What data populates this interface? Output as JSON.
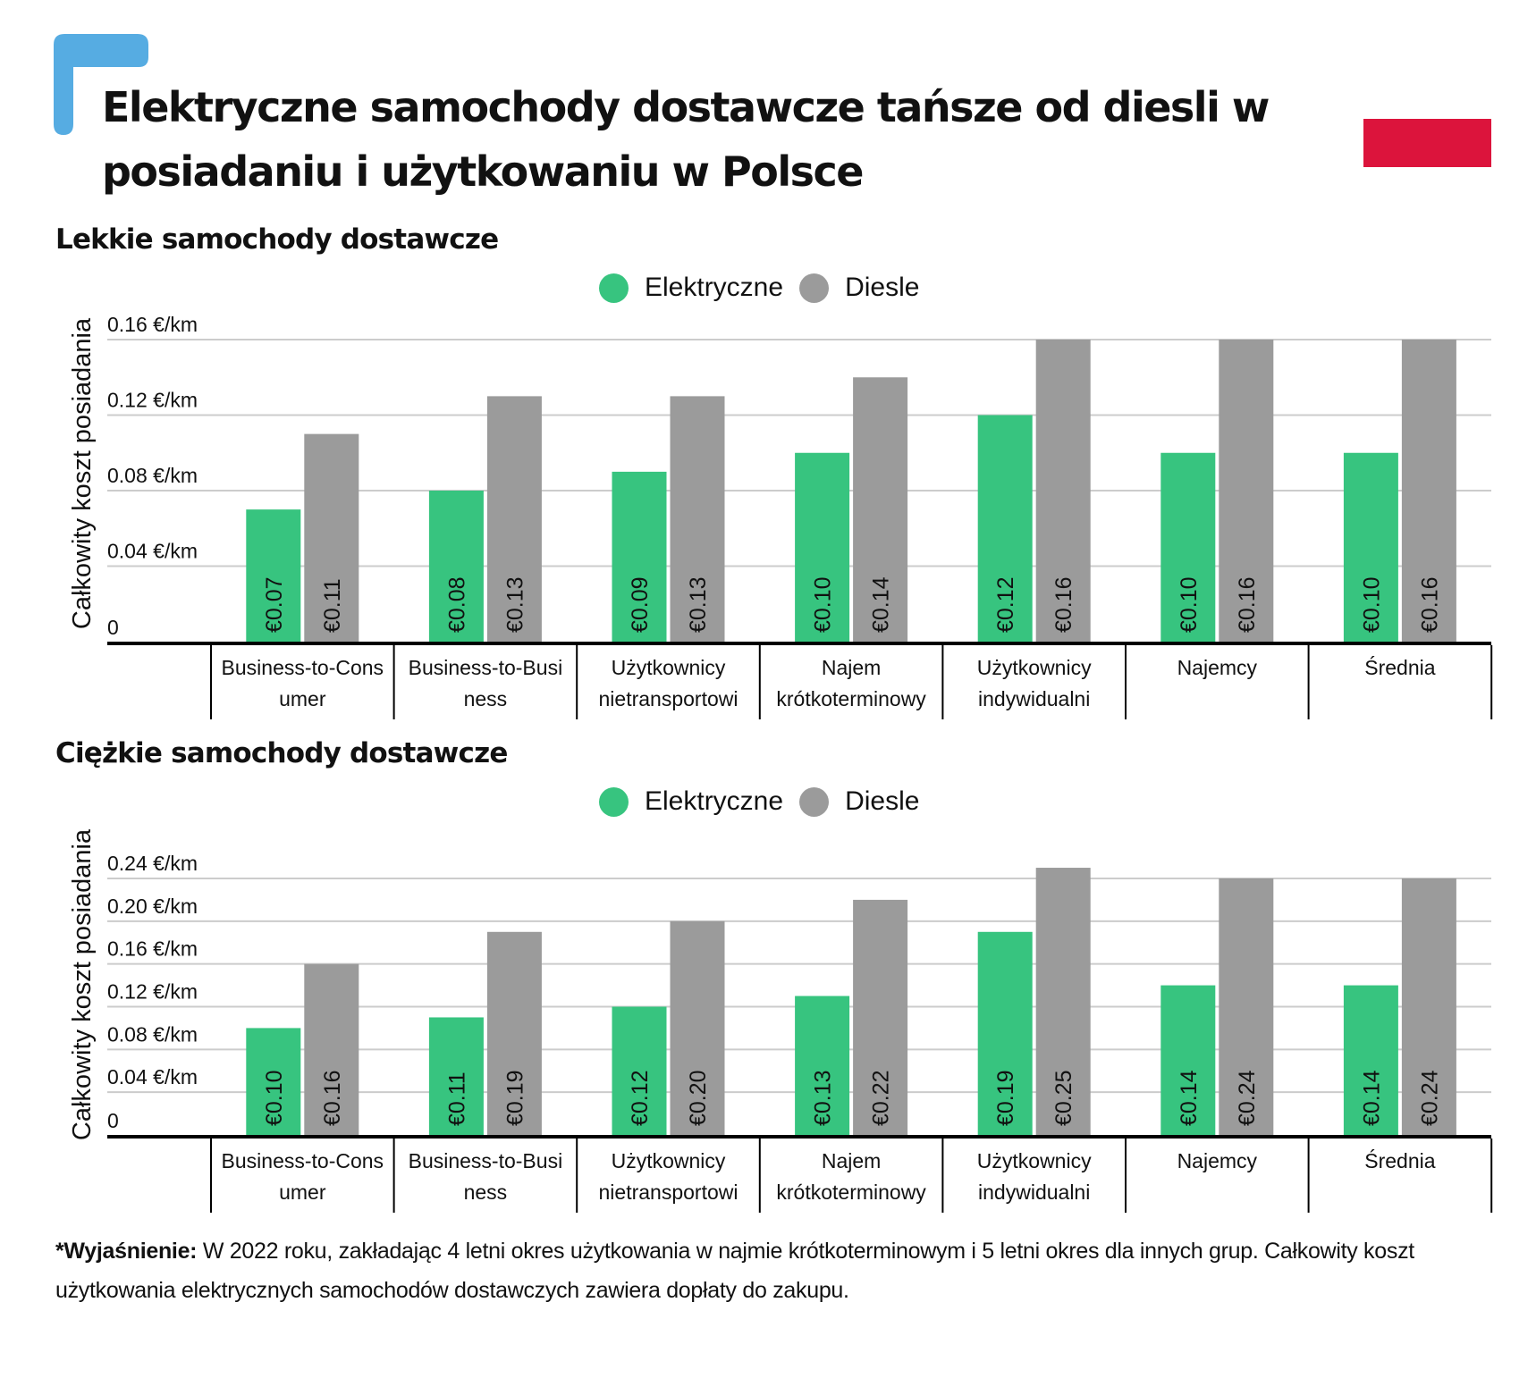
{
  "header": {
    "title": "Elektryczne samochody dostawcze tańsze od diesli w posiadaniu i użytkowaniu w Polsce",
    "logo_icon": "brand-corner-icon",
    "flag_icon": "poland-flag-icon",
    "colors": {
      "logo": "#56ACE2",
      "flag": "#DC143C"
    }
  },
  "colors": {
    "electric": "#37C47F",
    "diesel": "#9B9B9B",
    "grid": "#CCCCCC",
    "axis": "#000000"
  },
  "chart_data": [
    {
      "type": "bar",
      "title": "Lekkie samochody dostawcze",
      "ylabel": "Całkowity koszt posiadania",
      "xlabel": "",
      "ylim": [
        0,
        0.16
      ],
      "yticks": [
        0,
        0.04,
        0.08,
        0.12,
        0.16
      ],
      "ytick_labels": [
        "0",
        "0.04 €/km",
        "0.08 €/km",
        "0.12 €/km",
        "0.16 €/km"
      ],
      "grid": true,
      "legend_position": "top-center",
      "categories": [
        [
          "Business-to-Cons",
          "umer"
        ],
        [
          "Business-to-Busi",
          "ness"
        ],
        [
          "Użytkownicy",
          "nietransportowi"
        ],
        [
          "Najem",
          "krótkoterminowy"
        ],
        [
          "Użytkownicy",
          "indywidualni"
        ],
        [
          "Najemcy"
        ],
        [
          "Średnia"
        ]
      ],
      "series": [
        {
          "name": "Elektryczne",
          "color": "#37C47F",
          "values": [
            0.07,
            0.08,
            0.09,
            0.1,
            0.12,
            0.1,
            0.1
          ],
          "labels": [
            "€0.07",
            "€0.08",
            "€0.09",
            "€0.10",
            "€0.12",
            "€0.10",
            "€0.10"
          ]
        },
        {
          "name": "Diesle",
          "color": "#9B9B9B",
          "values": [
            0.11,
            0.13,
            0.13,
            0.14,
            0.16,
            0.16,
            0.16
          ],
          "labels": [
            "€0.11",
            "€0.13",
            "€0.13",
            "€0.14",
            "€0.16",
            "€0.16",
            "€0.16"
          ]
        }
      ]
    },
    {
      "type": "bar",
      "title": "Ciężkie samochody dostawcze",
      "ylabel": "Całkowity koszt posiadania",
      "xlabel": "",
      "ylim": [
        0,
        0.24
      ],
      "yticks": [
        0,
        0.04,
        0.08,
        0.12,
        0.16,
        0.2,
        0.24
      ],
      "ytick_labels": [
        "0",
        "0.04 €/km",
        "0.08 €/km",
        "0.12 €/km",
        "0.16 €/km",
        "0.20 €/km",
        "0.24 €/km"
      ],
      "grid": true,
      "legend_position": "top-center",
      "categories": [
        [
          "Business-to-Cons",
          "umer"
        ],
        [
          "Business-to-Busi",
          "ness"
        ],
        [
          "Użytkownicy",
          "nietransportowi"
        ],
        [
          "Najem",
          "krótkoterminowy"
        ],
        [
          "Użytkownicy",
          "indywidualni"
        ],
        [
          "Najemcy"
        ],
        [
          "Średnia"
        ]
      ],
      "series": [
        {
          "name": "Elektryczne",
          "color": "#37C47F",
          "values": [
            0.1,
            0.11,
            0.12,
            0.13,
            0.19,
            0.14,
            0.14
          ],
          "labels": [
            "€0.10",
            "€0.11",
            "€0.12",
            "€0.13",
            "€0.19",
            "€0.14",
            "€0.14"
          ]
        },
        {
          "name": "Diesle",
          "color": "#9B9B9B",
          "values": [
            0.16,
            0.19,
            0.2,
            0.22,
            0.25,
            0.24,
            0.24
          ],
          "labels": [
            "€0.16",
            "€0.19",
            "€0.20",
            "€0.22",
            "€0.25",
            "€0.24",
            "€0.24"
          ]
        }
      ]
    }
  ],
  "legend": {
    "electric_label": "Elektryczne",
    "diesel_label": "Diesle"
  },
  "footnote": {
    "bold_prefix": "*Wyjaśnienie:",
    "text": " W 2022 roku, zakładając 4 letni okres użytkowania w najmie krótkoterminowym i 5 letni okres dla innych grup. Całkowity koszt użytkowania elektrycznych samochodów dostawczych zawiera dopłaty do zakupu."
  }
}
